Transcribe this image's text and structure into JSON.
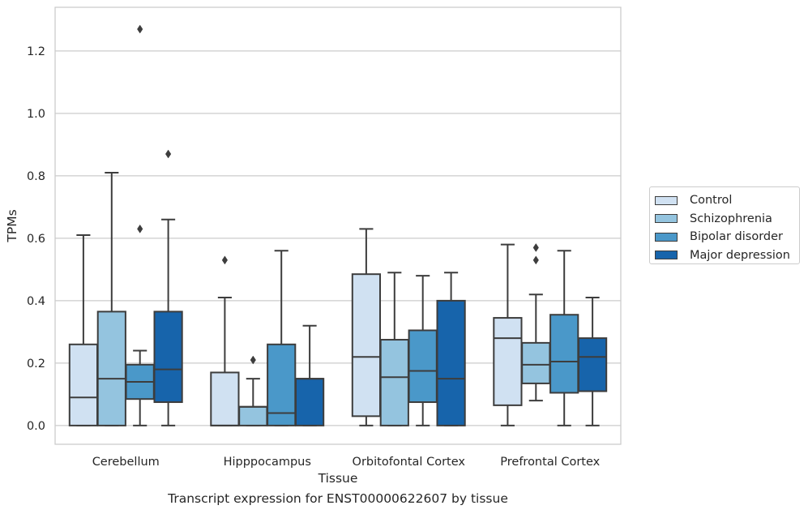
{
  "caption": "Transcript expression for ENST00000622607 by tissue",
  "chart_data": {
    "type": "box",
    "xlabel": "Tissue",
    "ylabel": "TPMs",
    "ylim": [
      -0.06,
      1.34
    ],
    "yticks": [
      "0.0",
      "0.2",
      "0.4",
      "0.6",
      "0.8",
      "1.0",
      "1.2"
    ],
    "grid": "horizontal",
    "legend_position": "right",
    "categories": [
      "Cerebellum",
      "Hipppocampus",
      "Orbitofontal Cortex",
      "Prefrontal Cortex"
    ],
    "series": [
      {
        "name": "Control",
        "color": "#d0e1f2",
        "boxes": [
          {
            "whislo": 0.0,
            "q1": 0.0,
            "med": 0.09,
            "q3": 0.26,
            "whishi": 0.61,
            "fliers": []
          },
          {
            "whislo": 0.0,
            "q1": 0.0,
            "med": 0.0,
            "q3": 0.17,
            "whishi": 0.41,
            "fliers": [
              0.53
            ]
          },
          {
            "whislo": 0.0,
            "q1": 0.03,
            "med": 0.22,
            "q3": 0.485,
            "whishi": 0.63,
            "fliers": []
          },
          {
            "whislo": 0.0,
            "q1": 0.065,
            "med": 0.28,
            "q3": 0.345,
            "whishi": 0.58,
            "fliers": []
          }
        ]
      },
      {
        "name": "Schizophrenia",
        "color": "#94c4df",
        "boxes": [
          {
            "whislo": 0.0,
            "q1": 0.0,
            "med": 0.15,
            "q3": 0.365,
            "whishi": 0.81,
            "fliers": []
          },
          {
            "whislo": 0.0,
            "q1": 0.0,
            "med": 0.06,
            "q3": 0.06,
            "whishi": 0.15,
            "fliers": [
              0.21
            ]
          },
          {
            "whislo": 0.0,
            "q1": 0.0,
            "med": 0.155,
            "q3": 0.275,
            "whishi": 0.49,
            "fliers": []
          },
          {
            "whislo": 0.08,
            "q1": 0.135,
            "med": 0.195,
            "q3": 0.265,
            "whishi": 0.42,
            "fliers": [
              0.53,
              0.57
            ]
          }
        ]
      },
      {
        "name": "Bipolar disorder",
        "color": "#4a98c9",
        "boxes": [
          {
            "whislo": 0.0,
            "q1": 0.085,
            "med": 0.14,
            "q3": 0.195,
            "whishi": 0.24,
            "fliers": [
              0.63,
              1.27
            ]
          },
          {
            "whislo": 0.0,
            "q1": 0.0,
            "med": 0.04,
            "q3": 0.26,
            "whishi": 0.56,
            "fliers": []
          },
          {
            "whislo": 0.0,
            "q1": 0.075,
            "med": 0.175,
            "q3": 0.305,
            "whishi": 0.48,
            "fliers": []
          },
          {
            "whislo": 0.0,
            "q1": 0.105,
            "med": 0.205,
            "q3": 0.355,
            "whishi": 0.56,
            "fliers": []
          }
        ]
      },
      {
        "name": "Major depression",
        "color": "#1764ab",
        "boxes": [
          {
            "whislo": 0.0,
            "q1": 0.075,
            "med": 0.18,
            "q3": 0.365,
            "whishi": 0.66,
            "fliers": [
              0.87
            ]
          },
          {
            "whislo": 0.0,
            "q1": 0.0,
            "med": 0.15,
            "q3": 0.15,
            "whishi": 0.32,
            "fliers": []
          },
          {
            "whislo": 0.0,
            "q1": 0.0,
            "med": 0.15,
            "q3": 0.4,
            "whishi": 0.49,
            "fliers": []
          },
          {
            "whislo": 0.0,
            "q1": 0.11,
            "med": 0.22,
            "q3": 0.28,
            "whishi": 0.41,
            "fliers": []
          }
        ]
      }
    ]
  }
}
